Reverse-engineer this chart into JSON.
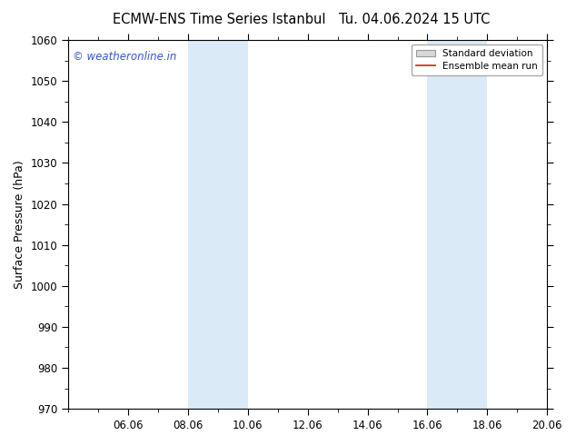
{
  "title_left": "ECMW-ENS Time Series Istanbul",
  "title_right": "Tu. 04.06.2024 15 UTC",
  "ylabel": "Surface Pressure (hPa)",
  "ylim": [
    970,
    1060
  ],
  "yticks": [
    970,
    980,
    990,
    1000,
    1010,
    1020,
    1030,
    1040,
    1050,
    1060
  ],
  "xlim": [
    0,
    16
  ],
  "xtick_labels": [
    "06.06",
    "08.06",
    "10.06",
    "12.06",
    "14.06",
    "16.06",
    "18.06",
    "20.06"
  ],
  "xtick_positions": [
    2,
    4,
    6,
    8,
    10,
    12,
    14,
    16
  ],
  "shaded_bands": [
    {
      "xstart": 4,
      "xend": 6
    },
    {
      "xstart": 12,
      "xend": 14
    }
  ],
  "shaded_color": "#daeaf7",
  "background_color": "#ffffff",
  "watermark_text": "© weatheronline.in",
  "watermark_color": "#3355cc",
  "watermark_fontsize": 8.5,
  "legend_std_label": "Standard deviation",
  "legend_mean_label": "Ensemble mean run",
  "std_patch_facecolor": "#d8d8d8",
  "std_patch_edgecolor": "#999999",
  "mean_line_color": "#cc2200",
  "title_fontsize": 10.5,
  "ylabel_fontsize": 9,
  "tick_fontsize": 8.5
}
